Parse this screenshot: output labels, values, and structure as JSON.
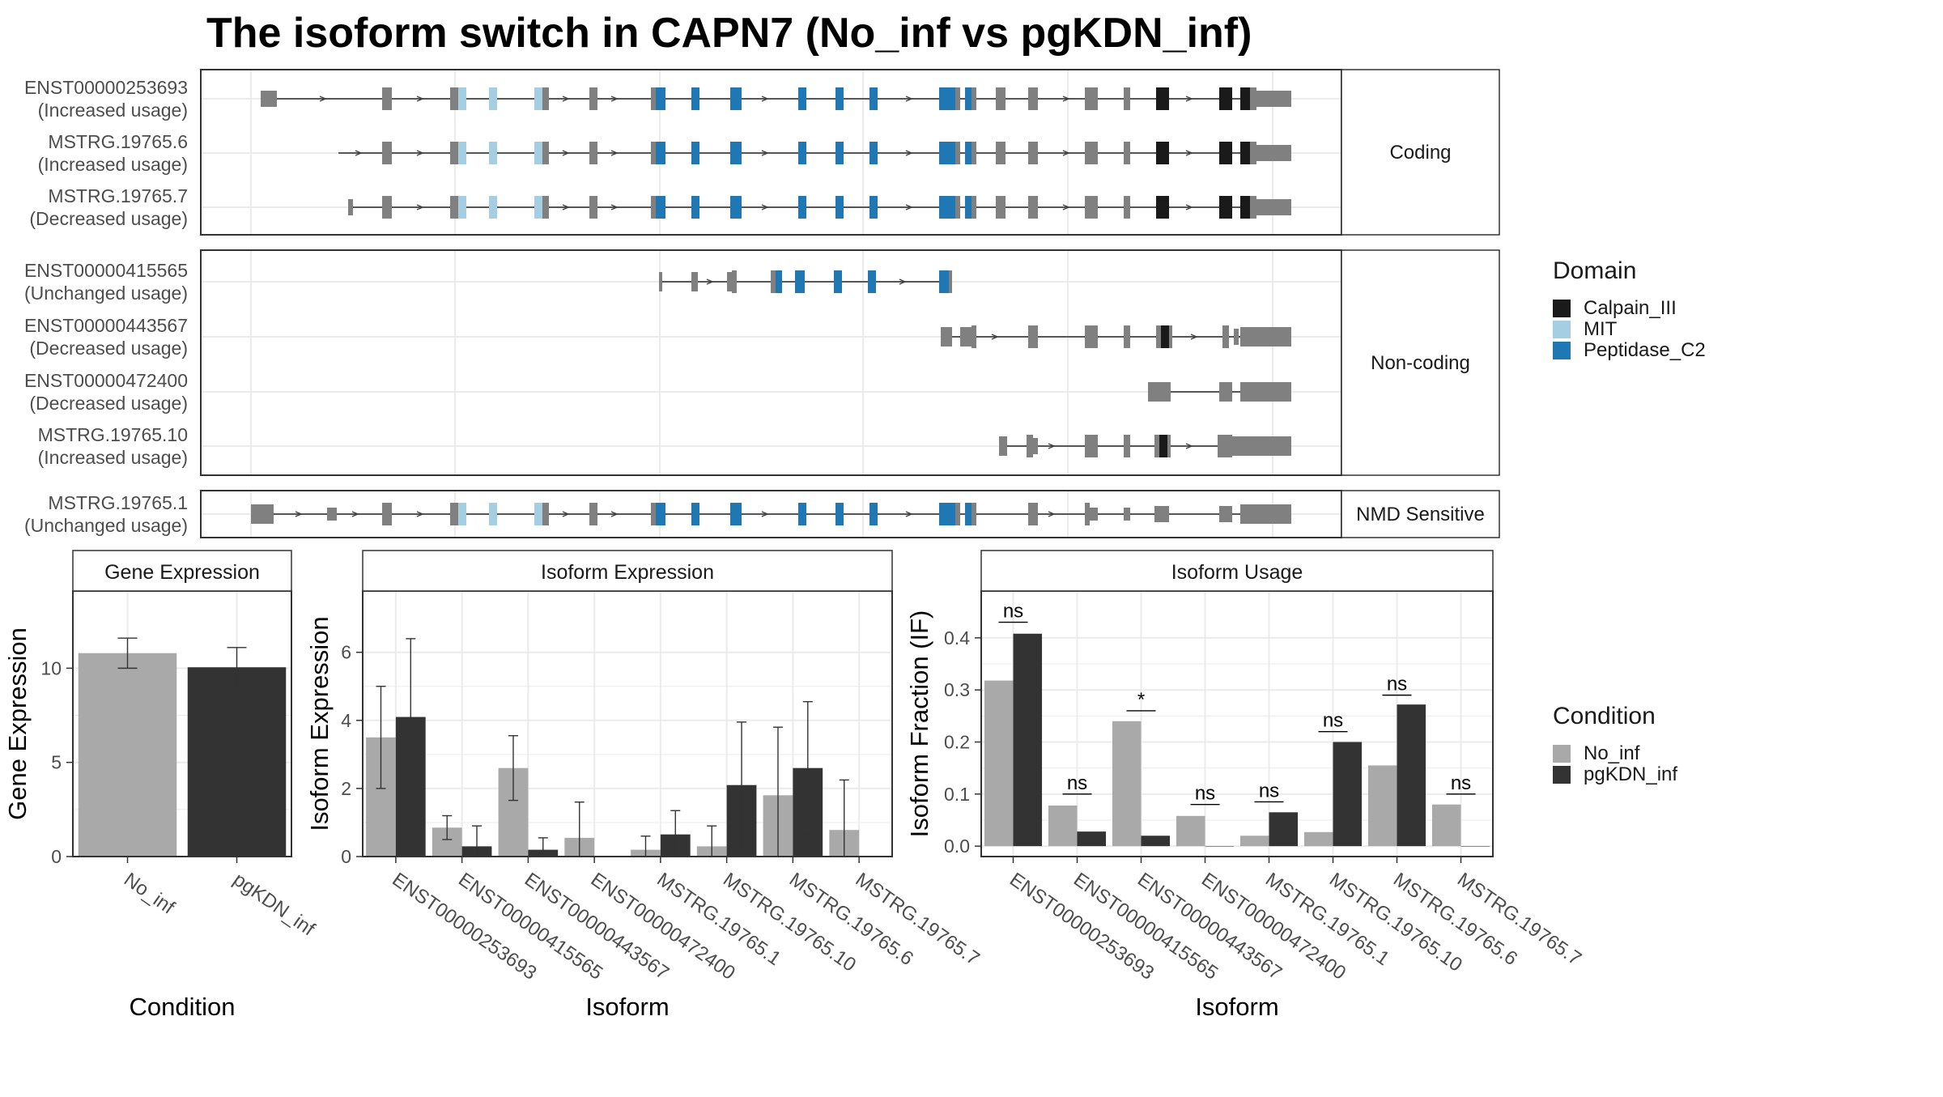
{
  "title": "The isoform switch in CAPN7 (No_inf vs pgKDN_inf)",
  "colors": {
    "no_inf": "#a9a9a9",
    "pgkdn_inf": "#333333",
    "exon": "#808080",
    "calpain": "#1a1a1a",
    "mit": "#a6cee3",
    "peptidase": "#1f78b4",
    "intron": "#404040",
    "grid": "#ebebeb",
    "strip_fill": "#ffffff",
    "panel_border": "#333333"
  },
  "structure": {
    "groups": [
      {
        "label": "Coding",
        "rows": [
          {
            "id": "ENST00000253693",
            "usage": "(Increased usage)"
          },
          {
            "id": "MSTRG.19765.6",
            "usage": "(Increased usage)"
          },
          {
            "id": "MSTRG.19765.7",
            "usage": "(Decreased usage)"
          }
        ]
      },
      {
        "label": "Non-coding",
        "rows": [
          {
            "id": "ENST00000415565",
            "usage": "(Unchanged usage)"
          },
          {
            "id": "ENST00000443567",
            "usage": "(Decreased usage)"
          },
          {
            "id": "ENST00000472400",
            "usage": "(Decreased usage)"
          },
          {
            "id": "MSTRG.19765.10",
            "usage": "(Increased usage)"
          }
        ]
      },
      {
        "label": "NMD Sensitive",
        "rows": [
          {
            "id": "MSTRG.19765.1",
            "usage": "(Unchanged usage)"
          }
        ]
      }
    ]
  },
  "legend_domain": {
    "title": "Domain",
    "items": [
      {
        "label": "Calpain_III",
        "color": "#1a1a1a"
      },
      {
        "label": "MIT",
        "color": "#a6cee3"
      },
      {
        "label": "Peptidase_C2",
        "color": "#1f78b4"
      }
    ]
  },
  "legend_condition": {
    "title": "Condition",
    "items": [
      {
        "label": "No_inf",
        "color": "#a9a9a9"
      },
      {
        "label": "pgKDN_inf",
        "color": "#333333"
      }
    ]
  },
  "chart_data": [
    {
      "type": "bar",
      "strip": "Gene Expression",
      "xlabel": "Condition",
      "ylabel": "Gene Expression",
      "categories": [
        "No_inf",
        "pgKDN_inf"
      ],
      "values": [
        10.8,
        10.05
      ],
      "err_low": [
        10.0,
        9.0
      ],
      "err_high": [
        11.6,
        11.1
      ],
      "ylim": [
        0,
        14.1
      ],
      "yticks": [
        0,
        5,
        10
      ]
    },
    {
      "type": "bar",
      "strip": "Isoform Expression",
      "xlabel": "Isoform",
      "ylabel": "Isoform Expression",
      "categories": [
        "ENST00000253693",
        "ENST00000415565",
        "ENST00000443567",
        "ENST00000472400",
        "MSTRG.19765.1",
        "MSTRG.19765.10",
        "MSTRG.19765.6",
        "MSTRG.19765.7"
      ],
      "series": [
        {
          "name": "No_inf",
          "values": [
            3.5,
            0.85,
            2.6,
            0.55,
            0.2,
            0.3,
            1.8,
            0.78
          ],
          "err_low": [
            2.0,
            0.5,
            1.65,
            0.0,
            0.0,
            0.0,
            0.0,
            0.0
          ],
          "err_high": [
            5.0,
            1.2,
            3.55,
            1.6,
            0.6,
            0.9,
            3.8,
            2.25
          ]
        },
        {
          "name": "pgKDN_inf",
          "values": [
            4.1,
            0.3,
            0.2,
            0.0,
            0.65,
            2.1,
            2.6,
            0.0
          ],
          "err_low": [
            1.8,
            0.0,
            0.0,
            0.0,
            0.0,
            0.25,
            0.65,
            0.0
          ],
          "err_high": [
            6.4,
            0.9,
            0.55,
            0.0,
            1.35,
            3.95,
            4.55,
            0.0
          ]
        }
      ],
      "ylim": [
        0,
        7.8
      ],
      "yticks": [
        0,
        2,
        4,
        6
      ]
    },
    {
      "type": "bar",
      "strip": "Isoform Usage",
      "xlabel": "Isoform",
      "ylabel": "Isoform Fraction (IF)",
      "categories": [
        "ENST00000253693",
        "ENST00000415565",
        "ENST00000443567",
        "ENST00000472400",
        "MSTRG.19765.1",
        "MSTRG.19765.10",
        "MSTRG.19765.6",
        "MSTRG.19765.7"
      ],
      "series": [
        {
          "name": "No_inf",
          "values": [
            0.318,
            0.078,
            0.24,
            0.058,
            0.02,
            0.027,
            0.155,
            0.08
          ]
        },
        {
          "name": "pgKDN_inf",
          "values": [
            0.408,
            0.028,
            0.02,
            0.0,
            0.065,
            0.2,
            0.272,
            0.0
          ]
        }
      ],
      "significance": [
        "ns",
        "ns",
        "*",
        "ns",
        "ns",
        "ns",
        "ns",
        "ns"
      ],
      "sig_y": [
        0.43,
        0.1,
        0.26,
        0.08,
        0.085,
        0.22,
        0.29,
        0.1
      ],
      "ylim": [
        -0.02,
        0.49
      ],
      "yticks": [
        0.0,
        0.1,
        0.2,
        0.3,
        0.4
      ],
      "ytick_labels": [
        "0.0",
        "0.1",
        "0.2",
        "0.3",
        "0.4"
      ]
    }
  ]
}
